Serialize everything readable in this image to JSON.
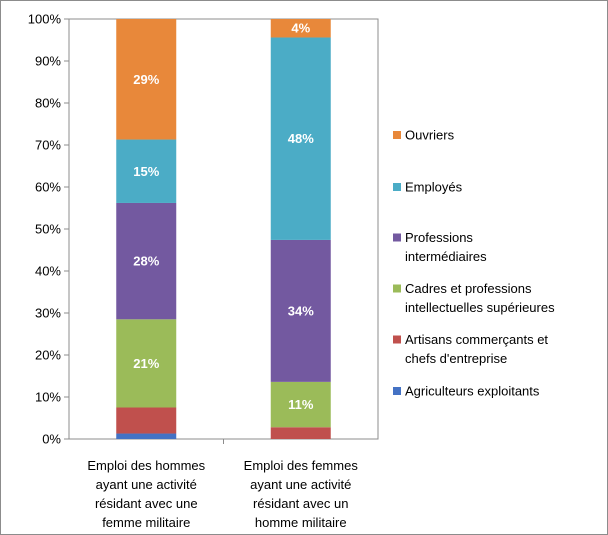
{
  "chart_data": {
    "type": "bar",
    "stacked": true,
    "normalized": true,
    "ylim": [
      0,
      100
    ],
    "y_ticks": [
      "0%",
      "10%",
      "20%",
      "30%",
      "40%",
      "50%",
      "60%",
      "70%",
      "80%",
      "90%",
      "100%"
    ],
    "grid": false,
    "legend_position": "right",
    "categories": [
      [
        "Emploi des hommes",
        "ayant une activité",
        "résidant avec une",
        "femme militaire"
      ],
      [
        "Emploi des femmes",
        "ayant une activité",
        "résidant avec un",
        "homme militaire"
      ]
    ],
    "series": [
      {
        "name": "Agriculteurs exploitants",
        "legend_lines": [
          "Agriculteurs exploitants"
        ],
        "color": "#4472C4",
        "values": [
          1.3,
          0
        ],
        "labels": [
          "",
          ""
        ]
      },
      {
        "name": "Artisans commerçants et chefs d'entreprise",
        "legend_lines": [
          "Artisans commerçants et",
          "chefs d'entreprise"
        ],
        "color": "#C0504D",
        "values": [
          6.2,
          2.8
        ],
        "labels": [
          "",
          ""
        ]
      },
      {
        "name": "Cadres et professions intellectuelles supérieures",
        "legend_lines": [
          "Cadres et professions",
          "intellectuelles supérieures"
        ],
        "color": "#9BBB59",
        "values": [
          21,
          10.8
        ],
        "labels": [
          "21%",
          "11%"
        ]
      },
      {
        "name": "Professions intermédiaires",
        "legend_lines": [
          "Professions",
          "intermédiaires"
        ],
        "color": "#7359A0",
        "values": [
          27.7,
          33.8
        ],
        "labels": [
          "28%",
          "34%"
        ]
      },
      {
        "name": "Employés",
        "legend_lines": [
          "Employés"
        ],
        "color": "#4BACC6",
        "values": [
          15.1,
          48.2
        ],
        "labels": [
          "15%",
          "48%"
        ]
      },
      {
        "name": "Ouvriers",
        "legend_lines": [
          "Ouvriers"
        ],
        "color": "#E8883A",
        "values": [
          28.7,
          4.4
        ],
        "labels": [
          "29%",
          "4%"
        ]
      }
    ]
  }
}
